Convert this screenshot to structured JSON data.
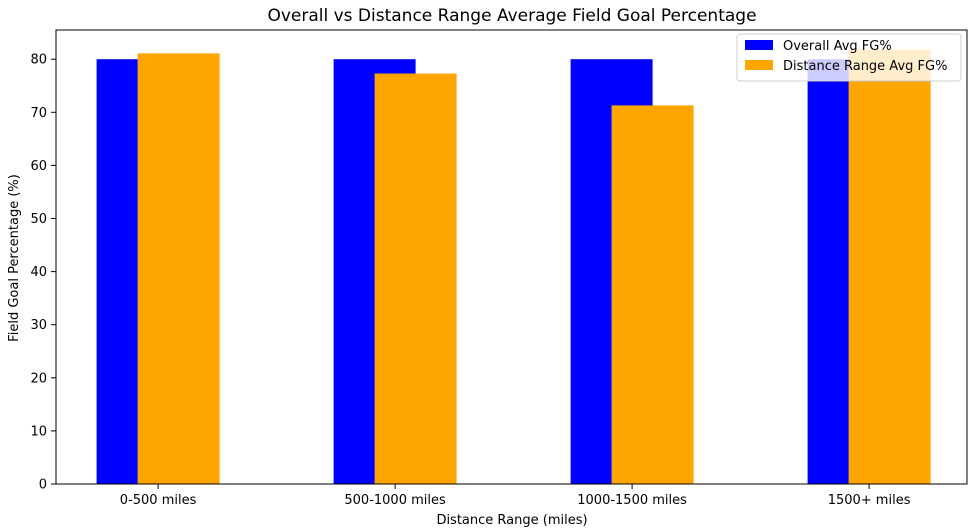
{
  "chart_data": {
    "type": "bar",
    "title": "Overall vs Distance Range Average Field Goal Percentage",
    "xlabel": "Distance Range (miles)",
    "ylabel": "Field Goal Percentage (%)",
    "categories": [
      "0-500 miles",
      "500-1000 miles",
      "1000-1500 miles",
      "1500+ miles"
    ],
    "series": [
      {
        "name": "Overall Avg FG%",
        "color": "#0000ff",
        "values": [
          80.0,
          80.0,
          80.0,
          80.0
        ]
      },
      {
        "name": "Distance Range Avg FG%",
        "color": "#ffa500",
        "values": [
          81.1,
          77.3,
          71.3,
          81.8
        ]
      }
    ],
    "ylim": [
      0,
      85.5
    ],
    "yticks": [
      0,
      10,
      20,
      30,
      40,
      50,
      60,
      70,
      80
    ],
    "grid": false,
    "legend": "upper right"
  }
}
